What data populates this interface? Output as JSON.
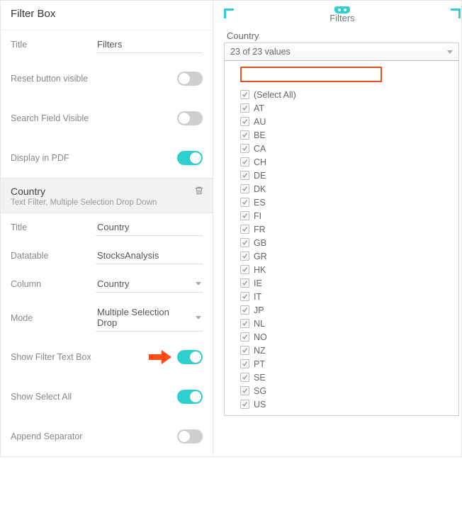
{
  "colors": {
    "accent": "#2cd0ce",
    "toggle_off": "#cfcfcf",
    "callout": "#ff4a1a",
    "search_border": "#e3531f",
    "corner": "#2cd0ce",
    "text": "#555555",
    "muted": "#999999",
    "border": "#e6e6e6"
  },
  "panel": {
    "title": "Filter Box",
    "fields": {
      "title_label": "Title",
      "title_value": "Filters",
      "reset_label": "Reset button visible",
      "reset_on": false,
      "search_label": "Search Field Visible",
      "search_on": false,
      "pdf_label": "Display in PDF",
      "pdf_on": true
    },
    "section": {
      "name": "Country",
      "subtitle": "Text Filter, Multiple Selection Drop Down"
    },
    "filter": {
      "title_label": "Title",
      "title_value": "Country",
      "datatable_label": "Datatable",
      "datatable_value": "StocksAnalysis",
      "column_label": "Column",
      "column_value": "Country",
      "mode_label": "Mode",
      "mode_value": "Multiple Selection Drop",
      "show_textbox_label": "Show Filter Text Box",
      "show_textbox_on": true,
      "show_selectall_label": "Show Select All",
      "show_selectall_on": true,
      "append_sep_label": "Append Separator",
      "append_sep_on": false
    }
  },
  "preview": {
    "title": "Filters",
    "field_label": "Country",
    "dropdown_summary": "23 of 23 values",
    "search_value": "",
    "select_all_label": "(Select All)",
    "select_all_checked": true,
    "options": [
      {
        "label": "AT",
        "checked": true
      },
      {
        "label": "AU",
        "checked": true
      },
      {
        "label": "BE",
        "checked": true
      },
      {
        "label": "CA",
        "checked": true
      },
      {
        "label": "CH",
        "checked": true
      },
      {
        "label": "DE",
        "checked": true
      },
      {
        "label": "DK",
        "checked": true
      },
      {
        "label": "ES",
        "checked": true
      },
      {
        "label": "FI",
        "checked": true
      },
      {
        "label": "FR",
        "checked": true
      },
      {
        "label": "GB",
        "checked": true
      },
      {
        "label": "GR",
        "checked": true
      },
      {
        "label": "HK",
        "checked": true
      },
      {
        "label": "IE",
        "checked": true
      },
      {
        "label": "IT",
        "checked": true
      },
      {
        "label": "JP",
        "checked": true
      },
      {
        "label": "NL",
        "checked": true
      },
      {
        "label": "NO",
        "checked": true
      },
      {
        "label": "NZ",
        "checked": true
      },
      {
        "label": "PT",
        "checked": true
      },
      {
        "label": "SE",
        "checked": true
      },
      {
        "label": "SG",
        "checked": true
      },
      {
        "label": "US",
        "checked": true
      }
    ]
  }
}
